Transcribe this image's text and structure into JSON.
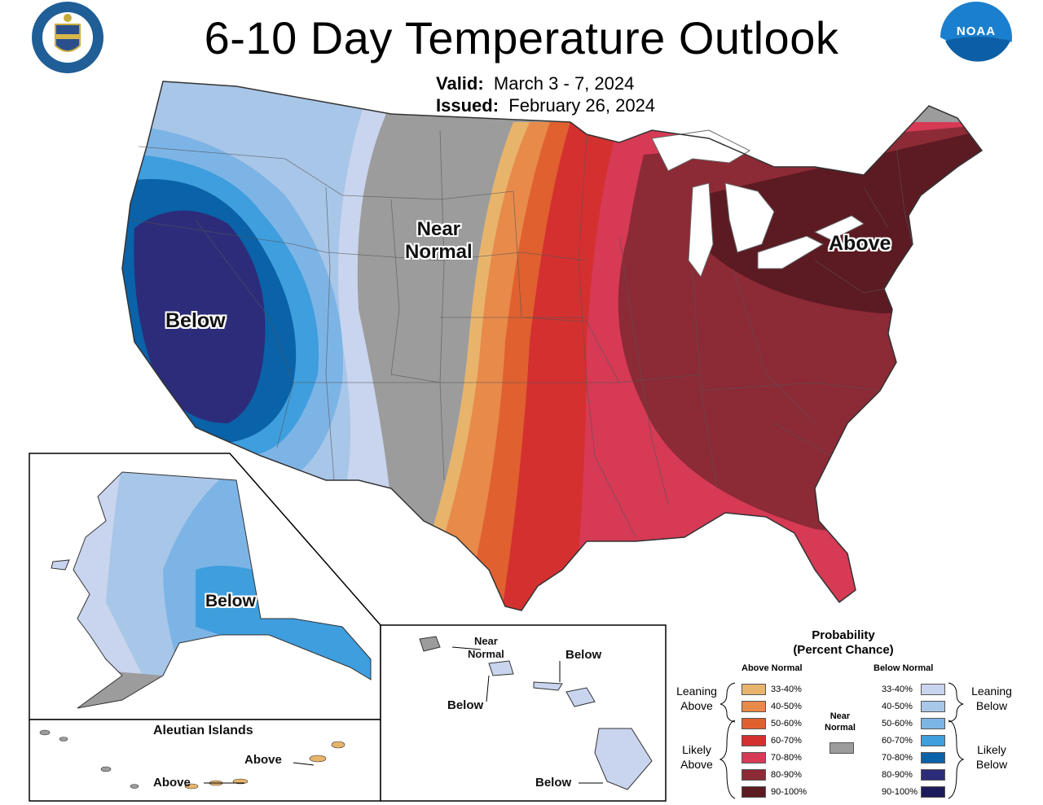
{
  "title": "6-10 Day Temperature Outlook",
  "valid": {
    "label": "Valid:",
    "value": "March 3 - 7, 2024"
  },
  "issued": {
    "label": "Issued:",
    "value": "February 26, 2024"
  },
  "logos": {
    "doc_seal": "doc-seal-icon",
    "noaa": "NOAA"
  },
  "regions": {
    "conus": {
      "near": "Near\nNormal",
      "below": "Below",
      "above": "Above"
    },
    "alaska": {
      "below": "Below"
    },
    "aleutian": {
      "title": "Aleutian Islands",
      "above1": "Above",
      "above2": "Above"
    },
    "hawaii": {
      "near": "Near\nNormal",
      "below1": "Below",
      "below2": "Below",
      "below3": "Below"
    }
  },
  "legend": {
    "title": "Probability\n(Percent Chance)",
    "above_header": "Above Normal",
    "below_header": "Below Normal",
    "near_header": "Near\nNormal",
    "leaning_above": "Leaning\nAbove",
    "likely_above": "Likely\nAbove",
    "leaning_below": "Leaning\nBelow",
    "likely_below": "Likely\nBelow",
    "ranges": [
      "33-40%",
      "40-50%",
      "50-60%",
      "60-70%",
      "70-80%",
      "80-90%",
      "90-100%"
    ],
    "above_colors": [
      "#e8b46c",
      "#e88a4a",
      "#e06030",
      "#d43030",
      "#d63a55",
      "#8c2a35",
      "#5c1a22"
    ],
    "below_colors": [
      "#c9d4ee",
      "#a8c6e8",
      "#7db4e6",
      "#3e9ede",
      "#0a62a8",
      "#2c2c7a",
      "#1d1a5a"
    ],
    "near_color": "#9c9c9c"
  }
}
